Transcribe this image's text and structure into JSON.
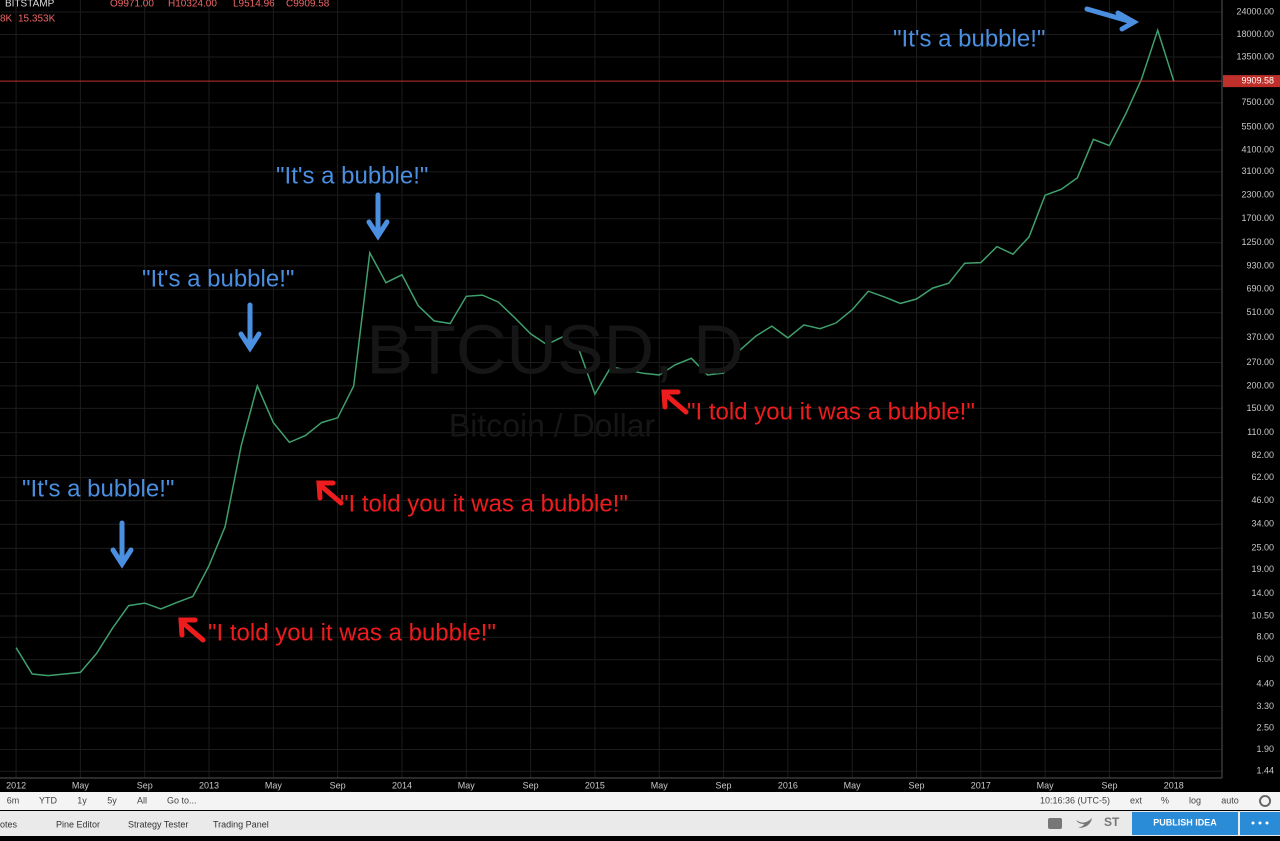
{
  "header": {
    "symbol": "BITSTAMP",
    "open": "O9971.00",
    "high": "H10324.00",
    "low": "L9514.96",
    "close": "C9909.58",
    "volume_cut": "8K",
    "volume": "15.353K"
  },
  "chart_data": {
    "type": "line",
    "title": "BTCUSD, D",
    "subtitle": "Bitcoin / Dollar",
    "color": "#3fa06c",
    "log_scale": true,
    "grid": true,
    "x": [
      "2012-01",
      "2012-02",
      "2012-03",
      "2012-04",
      "2012-05",
      "2012-06",
      "2012-07",
      "2012-08",
      "2012-09",
      "2012-10",
      "2012-11",
      "2012-12",
      "2013-01",
      "2013-02",
      "2013-03",
      "2013-04",
      "2013-05",
      "2013-06",
      "2013-07",
      "2013-08",
      "2013-09",
      "2013-10",
      "2013-11",
      "2013-12",
      "2014-01",
      "2014-02",
      "2014-03",
      "2014-04",
      "2014-05",
      "2014-06",
      "2014-07",
      "2014-08",
      "2014-09",
      "2014-10",
      "2014-11",
      "2014-12",
      "2015-01",
      "2015-02",
      "2015-03",
      "2015-04",
      "2015-05",
      "2015-06",
      "2015-07",
      "2015-08",
      "2015-09",
      "2015-10",
      "2015-11",
      "2015-12",
      "2016-01",
      "2016-02",
      "2016-03",
      "2016-04",
      "2016-05",
      "2016-06",
      "2016-07",
      "2016-08",
      "2016-09",
      "2016-10",
      "2016-11",
      "2016-12",
      "2017-01",
      "2017-02",
      "2017-03",
      "2017-04",
      "2017-05",
      "2017-06",
      "2017-07",
      "2017-08",
      "2017-09",
      "2017-10",
      "2017-11",
      "2017-12",
      "2018-01"
    ],
    "values": [
      7,
      5,
      4.9,
      5,
      5.1,
      6.5,
      9,
      12,
      12.4,
      11.5,
      12.5,
      13.5,
      20,
      33,
      93,
      200,
      125,
      97,
      106,
      125,
      133,
      200,
      1100,
      750,
      830,
      560,
      460,
      445,
      630,
      640,
      585,
      480,
      390,
      340,
      375,
      320,
      180,
      255,
      245,
      235,
      230,
      262,
      285,
      230,
      236,
      315,
      378,
      430,
      370,
      437,
      416,
      448,
      531,
      673,
      625,
      575,
      609,
      700,
      745,
      963,
      970,
      1190,
      1080,
      1350,
      2300,
      2480,
      2870,
      4700,
      4340,
      6470,
      10200,
      19000,
      9909.58
    ],
    "xlim": [
      "2011-12",
      "2018-04"
    ],
    "xticks": [
      {
        "value": "2012-01",
        "label": "2012"
      },
      {
        "value": "2012-05",
        "label": "May"
      },
      {
        "value": "2012-09",
        "label": "Sep"
      },
      {
        "value": "2013-01",
        "label": "2013"
      },
      {
        "value": "2013-05",
        "label": "May"
      },
      {
        "value": "2013-09",
        "label": "Sep"
      },
      {
        "value": "2014-01",
        "label": "2014"
      },
      {
        "value": "2014-05",
        "label": "May"
      },
      {
        "value": "2014-09",
        "label": "Sep"
      },
      {
        "value": "2015-01",
        "label": "2015"
      },
      {
        "value": "2015-05",
        "label": "May"
      },
      {
        "value": "2015-09",
        "label": "Sep"
      },
      {
        "value": "2016-01",
        "label": "2016"
      },
      {
        "value": "2016-05",
        "label": "May"
      },
      {
        "value": "2016-09",
        "label": "Sep"
      },
      {
        "value": "2017-01",
        "label": "2017"
      },
      {
        "value": "2017-05",
        "label": "May"
      },
      {
        "value": "2017-09",
        "label": "Sep"
      },
      {
        "value": "2018-01",
        "label": "2018"
      }
    ],
    "ylim": [
      1.32,
      28000
    ],
    "yticks": [
      {
        "value": 24000,
        "label": "24000.00"
      },
      {
        "value": 18000,
        "label": "18000.00"
      },
      {
        "value": 13500,
        "label": "13500.00"
      },
      {
        "value": 7500,
        "label": "7500.00"
      },
      {
        "value": 5500,
        "label": "5500.00"
      },
      {
        "value": 4100,
        "label": "4100.00"
      },
      {
        "value": 3100,
        "label": "3100.00"
      },
      {
        "value": 2300,
        "label": "2300.00"
      },
      {
        "value": 1700,
        "label": "1700.00"
      },
      {
        "value": 1250,
        "label": "1250.00"
      },
      {
        "value": 930,
        "label": "930.00"
      },
      {
        "value": 690,
        "label": "690.00"
      },
      {
        "value": 510,
        "label": "510.00"
      },
      {
        "value": 370,
        "label": "370.00"
      },
      {
        "value": 270,
        "label": "270.00"
      },
      {
        "value": 200,
        "label": "200.00"
      },
      {
        "value": 150,
        "label": "150.00"
      },
      {
        "value": 110,
        "label": "110.00"
      },
      {
        "value": 82,
        "label": "82.00"
      },
      {
        "value": 62,
        "label": "62.00"
      },
      {
        "value": 46,
        "label": "46.00"
      },
      {
        "value": 34,
        "label": "34.00"
      },
      {
        "value": 25,
        "label": "25.00"
      },
      {
        "value": 19,
        "label": "19.00"
      },
      {
        "value": 14,
        "label": "14.00"
      },
      {
        "value": 10.5,
        "label": "10.50"
      },
      {
        "value": 8,
        "label": "8.00"
      },
      {
        "value": 6,
        "label": "6.00"
      },
      {
        "value": 4.4,
        "label": "4.40"
      },
      {
        "value": 3.3,
        "label": "3.30"
      },
      {
        "value": 2.5,
        "label": "2.50"
      },
      {
        "value": 1.9,
        "label": "1.90"
      },
      1.44
    ],
    "price_line": 9909.58,
    "price_line_color": "#c0302a",
    "annotations": [
      {
        "text": "\"It's a bubble!\"",
        "color": "#4a8fe0"
      },
      {
        "text": "\"It's a bubble!\"",
        "color": "#4a8fe0"
      },
      {
        "text": "\"It's a bubble!\"",
        "color": "#4a8fe0"
      },
      {
        "text": "\"It's a bubble!\"",
        "color": "#4a8fe0"
      },
      {
        "text": "\"I told you it was a bubble!\"",
        "color": "#ee1c1c"
      },
      {
        "text": "\"I told you it was a bubble!\"",
        "color": "#ee1c1c"
      },
      {
        "text": "\"I told you it was a bubble!\"",
        "color": "#ee1c1c"
      }
    ]
  },
  "toolbar": {
    "ranges": [
      "6m",
      "YTD",
      "1y",
      "5y",
      "All"
    ],
    "goto": "Go to...",
    "time": "10:16:36 (UTC-5)",
    "options": [
      "ext",
      "%",
      "log",
      "auto"
    ]
  },
  "tabs": [
    "otes",
    "Pine Editor",
    "Strategy Tester",
    "Trading Panel"
  ],
  "bottom": {
    "stocktwits": "ST",
    "publish": "PUBLISH IDEA"
  }
}
